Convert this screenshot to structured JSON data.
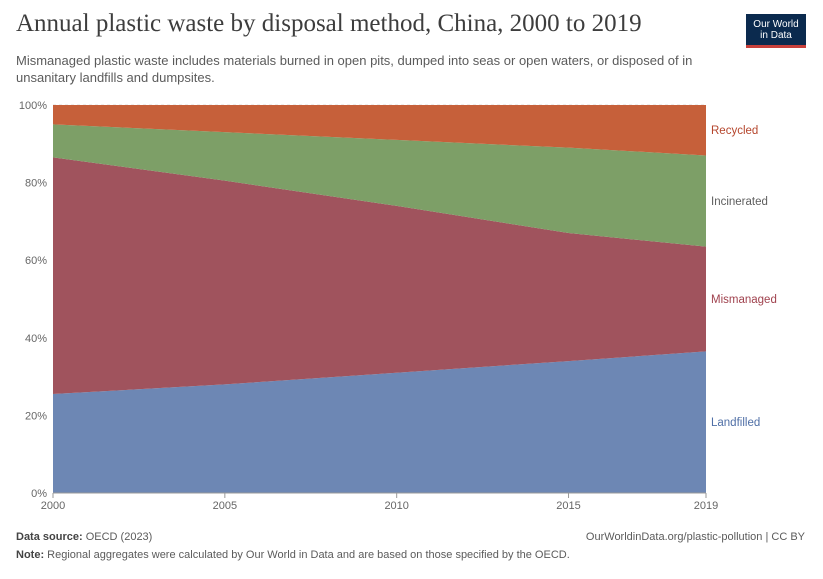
{
  "header": {
    "title": "Annual plastic waste by disposal method, China, 2000 to 2019",
    "subtitle": "Mismanaged plastic waste includes materials burned in open pits, dumped into seas or open waters, or disposed of in unsanitary landfills and dumpsites.",
    "logo_line1": "Our World",
    "logo_line2": "in Data"
  },
  "footer": {
    "source_label": "Data source:",
    "source_value": "OECD (2023)",
    "url": "OurWorldinData.org/plastic-pollution | CC BY",
    "note_label": "Note:",
    "note_value": "Regional aggregates were calculated by Our World in Data and are based on those specified by the OECD."
  },
  "chart_data": {
    "type": "area",
    "stacked": true,
    "relative": true,
    "x": [
      2000,
      2005,
      2010,
      2015,
      2019
    ],
    "xticks": [
      "2000",
      "2005",
      "2010",
      "2015",
      "2019"
    ],
    "yticks": [
      "0%",
      "20%",
      "40%",
      "60%",
      "80%",
      "100%"
    ],
    "ylim": [
      0,
      100
    ],
    "series": [
      {
        "name": "Landfilled",
        "color": "#6d87b4",
        "values": [
          25.5,
          28,
          31,
          34,
          36.5
        ]
      },
      {
        "name": "Mismanaged",
        "color": "#a0535d",
        "values": [
          61,
          52.5,
          43,
          33,
          27
        ]
      },
      {
        "name": "Incinerated",
        "color": "#7d9f67",
        "values": [
          8.5,
          12.5,
          17,
          22,
          23.5
        ]
      },
      {
        "name": "Recycled",
        "color": "#c6603a",
        "values": [
          5,
          7,
          9,
          11,
          13
        ]
      }
    ],
    "label_colors": {
      "Landfilled": "#4f6fa6",
      "Mismanaged": "#a0424e",
      "Incinerated": "#5e5e5e",
      "Recycled": "#b5462d"
    }
  }
}
